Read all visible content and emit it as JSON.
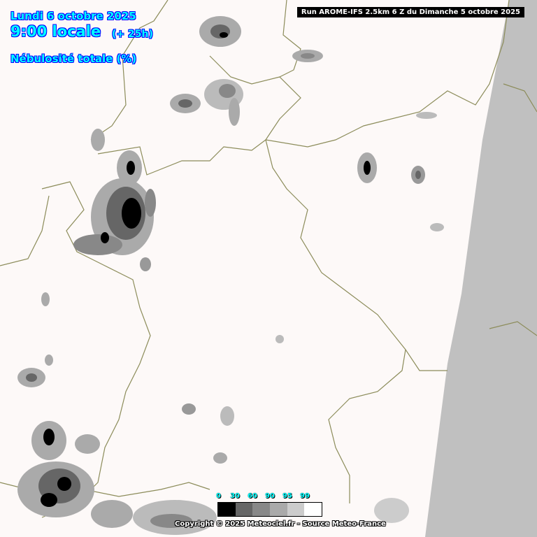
{
  "header": {
    "date": "Lundi 6 octobre 2025",
    "time": "9:00 locale",
    "lead": "(+ 25h)",
    "parameter": "Nébulosité totale (%)",
    "run": "Run AROME-IFS 2.5km 6 Z du Dimanche 5 octobre 2025"
  },
  "legend": {
    "ticks": [
      "0",
      "30",
      "60",
      "90",
      "95",
      "99"
    ],
    "colors": [
      "#000000",
      "#666666",
      "#888888",
      "#aaaaaa",
      "#cccccc",
      "#ffffff"
    ]
  },
  "footer": {
    "copyright": "Copyright © 2025 Meteociel.fr - Source Meteo-France"
  },
  "colors": {
    "background": "#fdf9f8",
    "outside_domain": "#c0c0c0",
    "borders": "#8c8c5a",
    "title_text": "#00ffff",
    "title_outline": "#0000ff"
  }
}
